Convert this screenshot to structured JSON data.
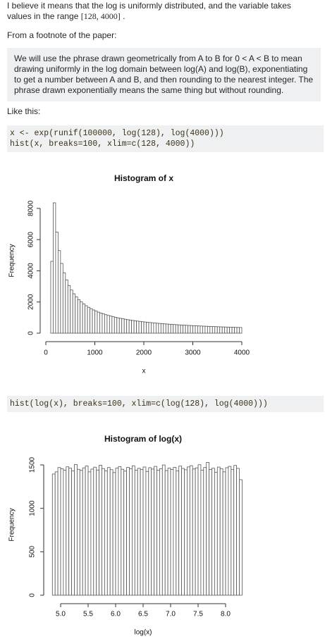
{
  "intro": {
    "text_before": "I believe it means that the log is uniformly distributed, and the variable takes values in the range",
    "math": "[128, 4000]",
    "text_after": "."
  },
  "footnote_lead": "From a footnote of the paper:",
  "quote": "We will use the phrase drawn geometrically from A to B for 0 < A < B to mean drawing uniformly in the log domain between log(A) and log(B), exponentiating to get a number between A and B, and then rounding to the nearest integer. The phrase drawn exponentially means the same thing but without rounding.",
  "like_this": "Like this:",
  "code1": [
    "x <- exp(runif(100000, log(128), log(4000)))",
    "hist(x, breaks=100, xlim=c(128, 4000))"
  ],
  "code2": [
    "hist(log(x), breaks=100, xlim=c(log(128), log(4000)))"
  ],
  "chart_data": [
    {
      "type": "histogram",
      "title": "Histogram of x",
      "x_label": "x",
      "y_label": "Frequency",
      "color": "#ffffff",
      "edge_color": "#555555",
      "bins": [
        100,
        150,
        200,
        250,
        300,
        350,
        400,
        450,
        500,
        550,
        600,
        650,
        700,
        750,
        800,
        850,
        900,
        950,
        1000,
        1050,
        1100,
        1150,
        1200,
        1250,
        1300,
        1350,
        1400,
        1450,
        1500,
        1550,
        1600,
        1650,
        1700,
        1750,
        1800,
        1850,
        1900,
        1950,
        2000,
        2050,
        2100,
        2150,
        2200,
        2250,
        2300,
        2350,
        2400,
        2450,
        2500,
        2550,
        2600,
        2650,
        2700,
        2750,
        2800,
        2850,
        2900,
        2950,
        3000,
        3050,
        3100,
        3150,
        3200,
        3250,
        3300,
        3350,
        3400,
        3450,
        3500,
        3550,
        3600,
        3650,
        3700,
        3750,
        3800,
        3850,
        3900,
        3950,
        4000
      ],
      "values": [
        4608,
        8358,
        6483,
        5297,
        4470,
        3874,
        3418,
        3058,
        2767,
        2526,
        2324,
        2152,
        2004,
        1874,
        1761,
        1660,
        1570,
        1490,
        1417,
        1351,
        1291,
        1236,
        1186,
        1139,
        1096,
        1056,
        1019,
        985,
        953,
        922,
        894,
        867,
        842,
        818,
        796,
        775,
        755,
        735,
        717,
        700,
        684,
        668,
        653,
        639,
        625,
        612,
        599,
        587,
        575,
        564,
        553,
        543,
        533,
        523,
        514,
        505,
        497,
        488,
        480,
        472,
        465,
        458,
        450,
        444,
        437,
        430,
        424,
        418,
        412,
        406,
        401,
        395,
        390,
        385,
        380,
        375,
        370,
        365
      ],
      "xlim": [
        0,
        4000
      ],
      "xticks": [
        0,
        1000,
        2000,
        3000,
        4000
      ],
      "ylim": [
        0,
        8400
      ],
      "yticks": [
        0,
        2000,
        4000,
        6000,
        8000
      ]
    },
    {
      "type": "histogram",
      "title": "Histogram of log(x)",
      "x_label": "log(x)",
      "y_label": "Frequency",
      "color": "#ffffff",
      "edge_color": "#555555",
      "bins": [
        4.85,
        4.9,
        4.95,
        5,
        5.05,
        5.1,
        5.15,
        5.2,
        5.25,
        5.3,
        5.35,
        5.4,
        5.45,
        5.5,
        5.55,
        5.6,
        5.65,
        5.7,
        5.75,
        5.8,
        5.85,
        5.9,
        5.95,
        6,
        6.05,
        6.1,
        6.15,
        6.2,
        6.25,
        6.3,
        6.35,
        6.4,
        6.45,
        6.5,
        6.55,
        6.6,
        6.65,
        6.7,
        6.75,
        6.8,
        6.85,
        6.9,
        6.95,
        7,
        7.05,
        7.1,
        7.15,
        7.2,
        7.25,
        7.3,
        7.35,
        7.4,
        7.45,
        7.5,
        7.55,
        7.6,
        7.65,
        7.7,
        7.75,
        7.8,
        7.85,
        7.9,
        7.95,
        8,
        8.05,
        8.1,
        8.15,
        8.2,
        8.25,
        8.3
      ],
      "values": [
        1395,
        1420,
        1470,
        1455,
        1440,
        1478,
        1462,
        1430,
        1505,
        1449,
        1437,
        1466,
        1488,
        1420,
        1452,
        1474,
        1441,
        1496,
        1458,
        1432,
        1470,
        1445,
        1412,
        1463,
        1481,
        1450,
        1429,
        1472,
        1455,
        1490,
        1438,
        1461,
        1447,
        1476,
        1425,
        1468,
        1452,
        1483,
        1440,
        1457,
        1499,
        1435,
        1464,
        1448,
        1473,
        1430,
        1486,
        1459,
        1444,
        1477,
        1491,
        1453,
        1466,
        1502,
        1438,
        1470,
        1529,
        1448,
        1462,
        1415,
        1475,
        1457,
        1420,
        1468,
        1483,
        1446,
        1494,
        1460,
        1330
      ],
      "xlim": [
        5,
        8
      ],
      "xticks": [
        {
          "value": 5,
          "label": "5.0"
        },
        5.5,
        {
          "value": 6,
          "label": "6.0"
        },
        6.5,
        {
          "value": 7,
          "label": "7.0"
        },
        7.5,
        {
          "value": 8,
          "label": "8.0"
        }
      ],
      "ylim": [
        0,
        1500
      ],
      "yticks": [
        0,
        500,
        1000,
        1500
      ]
    }
  ]
}
